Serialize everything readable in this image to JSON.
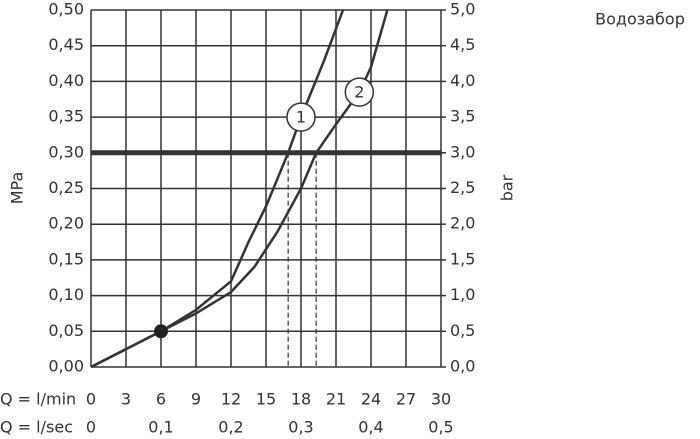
{
  "chart_data": {
    "type": "line",
    "title": "Водозабор",
    "y_label": "MPa",
    "y2_label": "bar",
    "x_label": "Q = l/min",
    "x2_label": "Q = l/sec",
    "xlim": [
      0,
      30
    ],
    "xticks": [
      0,
      3,
      6,
      9,
      12,
      15,
      18,
      21,
      24,
      27,
      30
    ],
    "x2lim": [
      0,
      0.5
    ],
    "x2ticks": [
      0,
      {
        "value": 0.1,
        "label": "0,1"
      },
      {
        "value": 0.2,
        "label": "0,2"
      },
      {
        "value": 0.3,
        "label": "0,3"
      },
      {
        "value": 0.4,
        "label": "0,4"
      },
      {
        "value": 0.5,
        "label": "0,5"
      }
    ],
    "ylim": [
      0,
      0.5
    ],
    "yticks": [
      {
        "value": 0,
        "label": "0,00"
      },
      {
        "value": 0.05,
        "label": "0,05"
      },
      {
        "value": 0.1,
        "label": "0,10"
      },
      {
        "value": 0.15,
        "label": "0,15"
      },
      {
        "value": 0.2,
        "label": "0,20"
      },
      {
        "value": 0.25,
        "label": "0,25"
      },
      {
        "value": 0.3,
        "label": "0,30"
      },
      {
        "value": 0.35,
        "label": "0,35"
      },
      {
        "value": 0.4,
        "label": "0,40"
      },
      {
        "value": 0.45,
        "label": "0,45"
      },
      {
        "value": 0.5,
        "label": "0,50"
      }
    ],
    "y2lim": [
      0,
      5
    ],
    "y2ticks": [
      {
        "value": 0,
        "label": "0,0"
      },
      {
        "value": 0.5,
        "label": "0,5"
      },
      {
        "value": 1,
        "label": "1,0"
      },
      {
        "value": 1.5,
        "label": "1,5"
      },
      {
        "value": 2,
        "label": "2,0"
      },
      {
        "value": 2.5,
        "label": "2,5"
      },
      {
        "value": 3,
        "label": "3,0"
      },
      {
        "value": 3.5,
        "label": "3,5"
      },
      {
        "value": 4,
        "label": "4,0"
      },
      {
        "value": 4.5,
        "label": "4,5"
      },
      {
        "value": 5,
        "label": "5,0"
      }
    ],
    "grid": true,
    "reference_line": 0.3,
    "crossing_x": [
      16.9,
      19.3
    ],
    "point": {
      "x": 6,
      "y": 0.05
    },
    "series": [
      {
        "name": "1",
        "color": "#333333",
        "x": [
          0,
          3,
          6,
          9,
          12,
          13.5,
          15,
          16.9,
          18,
          20,
          21.6
        ],
        "values": [
          0,
          0.025,
          0.05,
          0.08,
          0.12,
          0.175,
          0.225,
          0.3,
          0.35,
          0.43,
          0.5
        ]
      },
      {
        "name": "2",
        "color": "#333333",
        "x": [
          0,
          6,
          9,
          12,
          14,
          16,
          18,
          19.3,
          21,
          23,
          24,
          25.4
        ],
        "values": [
          0,
          0.05,
          0.075,
          0.105,
          0.14,
          0.19,
          0.25,
          0.3,
          0.34,
          0.385,
          0.42,
          0.5
        ]
      }
    ]
  }
}
